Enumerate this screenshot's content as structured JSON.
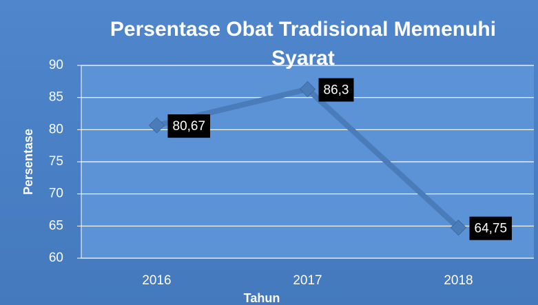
{
  "chart_data": {
    "type": "line",
    "title": "Persentase Obat Tradisional Memenuhi Syarat",
    "x_label": "Tahun",
    "y_label": "Persentase",
    "categories": [
      "2016",
      "2017",
      "2018"
    ],
    "values": [
      80.67,
      86.3,
      64.75
    ],
    "value_labels": [
      "80,67",
      "86,3",
      "64,75"
    ],
    "color": "#4a7cb9",
    "ylim": [
      60,
      90
    ],
    "yticks": [
      60,
      65,
      70,
      75,
      80,
      85,
      90
    ],
    "grid": true
  }
}
